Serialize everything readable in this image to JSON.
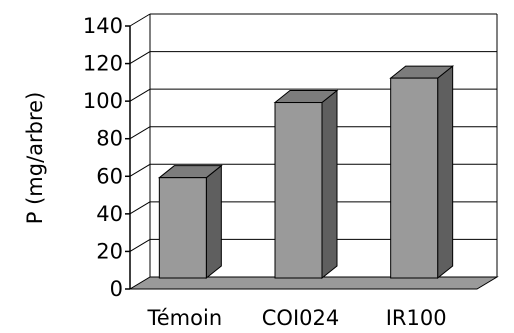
{
  "chart_data": {
    "type": "bar",
    "style": "3d",
    "categories": [
      "Témoin",
      "COI024",
      "IR100"
    ],
    "values": [
      55,
      95,
      108
    ],
    "ylabel": "P (mg/arbre)",
    "ylim": [
      0,
      140
    ],
    "yticks": [
      "0",
      "20",
      "40",
      "60",
      "80",
      "100",
      "120",
      "140"
    ],
    "grid": true,
    "colors": {
      "bar_front": "#9a9a9a",
      "bar_side": "#5f5f5f",
      "bar_top": "#7c7c7c",
      "floor": "#9a9a9a",
      "grid": "#000000"
    }
  }
}
